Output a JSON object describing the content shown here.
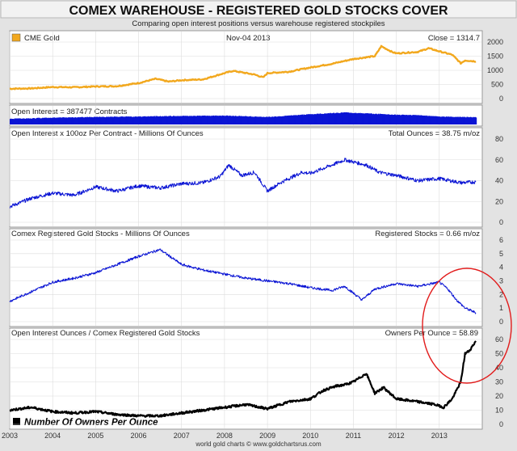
{
  "header": {
    "title": "COMEX WAREHOUSE - REGISTERED GOLD STOCKS COVER",
    "subtitle": "Comparing open interest positions versus warehouse registered stockpiles",
    "footer": "world gold charts © www.goldchartsrus.com"
  },
  "colors": {
    "frame": "#e3e3e3",
    "title_bg": "#f2f2f2",
    "gold": "#f2a81e",
    "blue": "#0a14d4",
    "black": "#000000",
    "grid": "#dcdcdc",
    "ellipse": "#e21c1c"
  },
  "chart_data": [
    {
      "type": "line",
      "panel": "cme-gold",
      "legend": "CME Gold",
      "date_label": "Nov-04  2013",
      "value_label": "Close = 1314.7",
      "color": "#f2a81e",
      "ylim": [
        0,
        2000
      ],
      "yticks": [
        0,
        500,
        1000,
        1500,
        2000
      ],
      "x": [
        2003.0,
        2003.5,
        2004.0,
        2004.5,
        2005.0,
        2005.5,
        2006.0,
        2006.4,
        2006.7,
        2007.0,
        2007.5,
        2008.0,
        2008.2,
        2008.7,
        2008.9,
        2009.0,
        2009.5,
        2010.0,
        2010.5,
        2011.0,
        2011.5,
        2011.65,
        2011.9,
        2012.0,
        2012.5,
        2012.75,
        2013.0,
        2013.3,
        2013.5,
        2013.6,
        2013.85
      ],
      "y": [
        350,
        360,
        410,
        400,
        430,
        440,
        550,
        700,
        600,
        650,
        680,
        900,
        980,
        850,
        750,
        900,
        950,
        1100,
        1230,
        1400,
        1500,
        1850,
        1650,
        1600,
        1650,
        1780,
        1670,
        1550,
        1250,
        1350,
        1314.7
      ]
    },
    {
      "type": "bar",
      "panel": "open-interest-contracts",
      "label": "Open Interest = 387477 Contracts",
      "color": "#0a14d4",
      "x": [
        2003.0,
        2004.0,
        2005.0,
        2006.0,
        2007.0,
        2008.0,
        2009.0,
        2010.0,
        2010.8,
        2011.5,
        2012.0,
        2012.5,
        2013.0,
        2013.85
      ],
      "y": [
        0.32,
        0.38,
        0.42,
        0.45,
        0.48,
        0.5,
        0.42,
        0.58,
        0.68,
        0.6,
        0.55,
        0.52,
        0.45,
        0.4
      ]
    },
    {
      "type": "line",
      "panel": "open-interest-ounces",
      "label": "Open Interest x 100oz Per Contract  -  Millions Of Ounces",
      "value_label": "Total Ounces = 38.75 m/oz",
      "color": "#0a14d4",
      "ylim": [
        0,
        80
      ],
      "yticks": [
        0,
        20,
        40,
        60,
        80
      ],
      "x": [
        2003.0,
        2003.5,
        2004.0,
        2004.5,
        2005.0,
        2005.5,
        2006.0,
        2006.5,
        2007.0,
        2007.5,
        2007.9,
        2008.1,
        2008.4,
        2008.7,
        2009.0,
        2009.3,
        2009.8,
        2010.0,
        2010.5,
        2010.8,
        2011.0,
        2011.3,
        2011.6,
        2012.0,
        2012.5,
        2013.0,
        2013.5,
        2013.85
      ],
      "y": [
        15,
        23,
        28,
        26,
        34,
        30,
        35,
        33,
        37,
        38,
        44,
        55,
        45,
        48,
        30,
        38,
        48,
        47,
        55,
        60,
        58,
        55,
        48,
        45,
        40,
        42,
        38,
        38.75
      ]
    },
    {
      "type": "line",
      "panel": "registered-stocks",
      "label": "Comex Registered Gold Stocks  -  Millions Of Ounces",
      "value_label": "Registered Stocks = 0.66 m/oz",
      "color": "#0a14d4",
      "ylim": [
        0,
        6
      ],
      "yticks": [
        0,
        1,
        2,
        3,
        4,
        5,
        6
      ],
      "x": [
        2003.0,
        2003.5,
        2004.0,
        2004.5,
        2005.0,
        2005.5,
        2006.0,
        2006.5,
        2007.0,
        2007.5,
        2008.0,
        2008.5,
        2009.0,
        2009.5,
        2010.0,
        2010.5,
        2010.8,
        2011.2,
        2011.5,
        2012.0,
        2012.5,
        2013.0,
        2013.2,
        2013.4,
        2013.6,
        2013.85
      ],
      "y": [
        1.5,
        2.2,
        2.9,
        3.2,
        3.6,
        4.2,
        4.8,
        5.3,
        4.2,
        3.8,
        3.5,
        3.2,
        3.0,
        2.8,
        2.5,
        2.3,
        2.6,
        1.6,
        2.4,
        2.8,
        2.6,
        2.9,
        2.4,
        1.6,
        1.0,
        0.66
      ]
    },
    {
      "type": "line",
      "panel": "owners-per-ounce",
      "label": "Open Interest Ounces / Comex Registered Gold Stocks",
      "value_label": "Owners Per Ounce = 58.89",
      "legend": "Number Of Owners Per Ounce",
      "color": "#000000",
      "ylim": [
        0,
        60
      ],
      "yticks": [
        0,
        10,
        20,
        30,
        40,
        50,
        60
      ],
      "x": [
        2003.0,
        2003.5,
        2004.0,
        2004.5,
        2005.0,
        2005.5,
        2006.0,
        2006.5,
        2007.0,
        2007.5,
        2008.0,
        2008.5,
        2009.0,
        2009.5,
        2010.0,
        2010.3,
        2010.6,
        2010.8,
        2011.0,
        2011.3,
        2011.5,
        2011.7,
        2012.0,
        2012.5,
        2012.9,
        2013.1,
        2013.3,
        2013.5,
        2013.6,
        2013.7,
        2013.85
      ],
      "y": [
        10,
        12,
        9,
        8,
        9,
        7,
        6,
        6,
        8,
        10,
        12,
        14,
        11,
        16,
        18,
        24,
        27,
        28,
        30,
        36,
        22,
        26,
        18,
        16,
        14,
        12,
        18,
        30,
        50,
        52,
        58.89
      ]
    }
  ],
  "x_axis": {
    "ticks": [
      "2003",
      "2004",
      "2005",
      "2006",
      "2007",
      "2008",
      "2009",
      "2010",
      "2011",
      "2012",
      "2013"
    ],
    "range": [
      2003,
      2014
    ]
  }
}
